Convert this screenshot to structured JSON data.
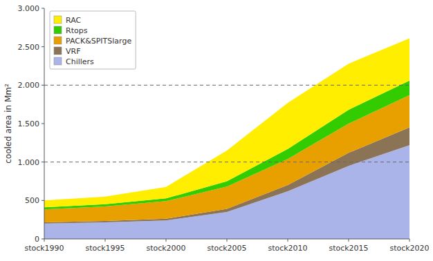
{
  "chart_data": {
    "type": "area",
    "stacked": true,
    "categories": [
      "stock1990",
      "stock1995",
      "stock2000",
      "stock2005",
      "stock2010",
      "stock2015",
      "stock2020"
    ],
    "series": [
      {
        "name": "Chillers",
        "color": "#aab4e8",
        "values": [
          200,
          215,
          240,
          350,
          620,
          950,
          1220
        ]
      },
      {
        "name": "VRF",
        "color": "#8b7355",
        "values": [
          15,
          18,
          22,
          40,
          80,
          170,
          230
        ]
      },
      {
        "name": "PACK&SPITSlarge",
        "color": "#e8a000",
        "values": [
          170,
          190,
          230,
          290,
          340,
          380,
          420
        ]
      },
      {
        "name": "Rtops",
        "color": "#33cc00",
        "values": [
          25,
          28,
          35,
          70,
          130,
          180,
          190
        ]
      },
      {
        "name": "RAC",
        "color": "#ffee00",
        "values": [
          90,
          100,
          150,
          400,
          600,
          600,
          550
        ]
      }
    ],
    "y_label": "cooled area in Mm²",
    "ylim": [
      0,
      3000
    ],
    "yticks": [
      0,
      500,
      {
        "value": 1000,
        "label": "1.000"
      },
      {
        "value": 1500,
        "label": "1.500"
      },
      {
        "value": 2000,
        "label": "2.000"
      },
      {
        "value": 2500,
        "label": "2.500"
      },
      {
        "value": 3000,
        "label": "3.000"
      }
    ],
    "reference_lines": [
      1000,
      2000
    ],
    "legend": "upper left"
  }
}
